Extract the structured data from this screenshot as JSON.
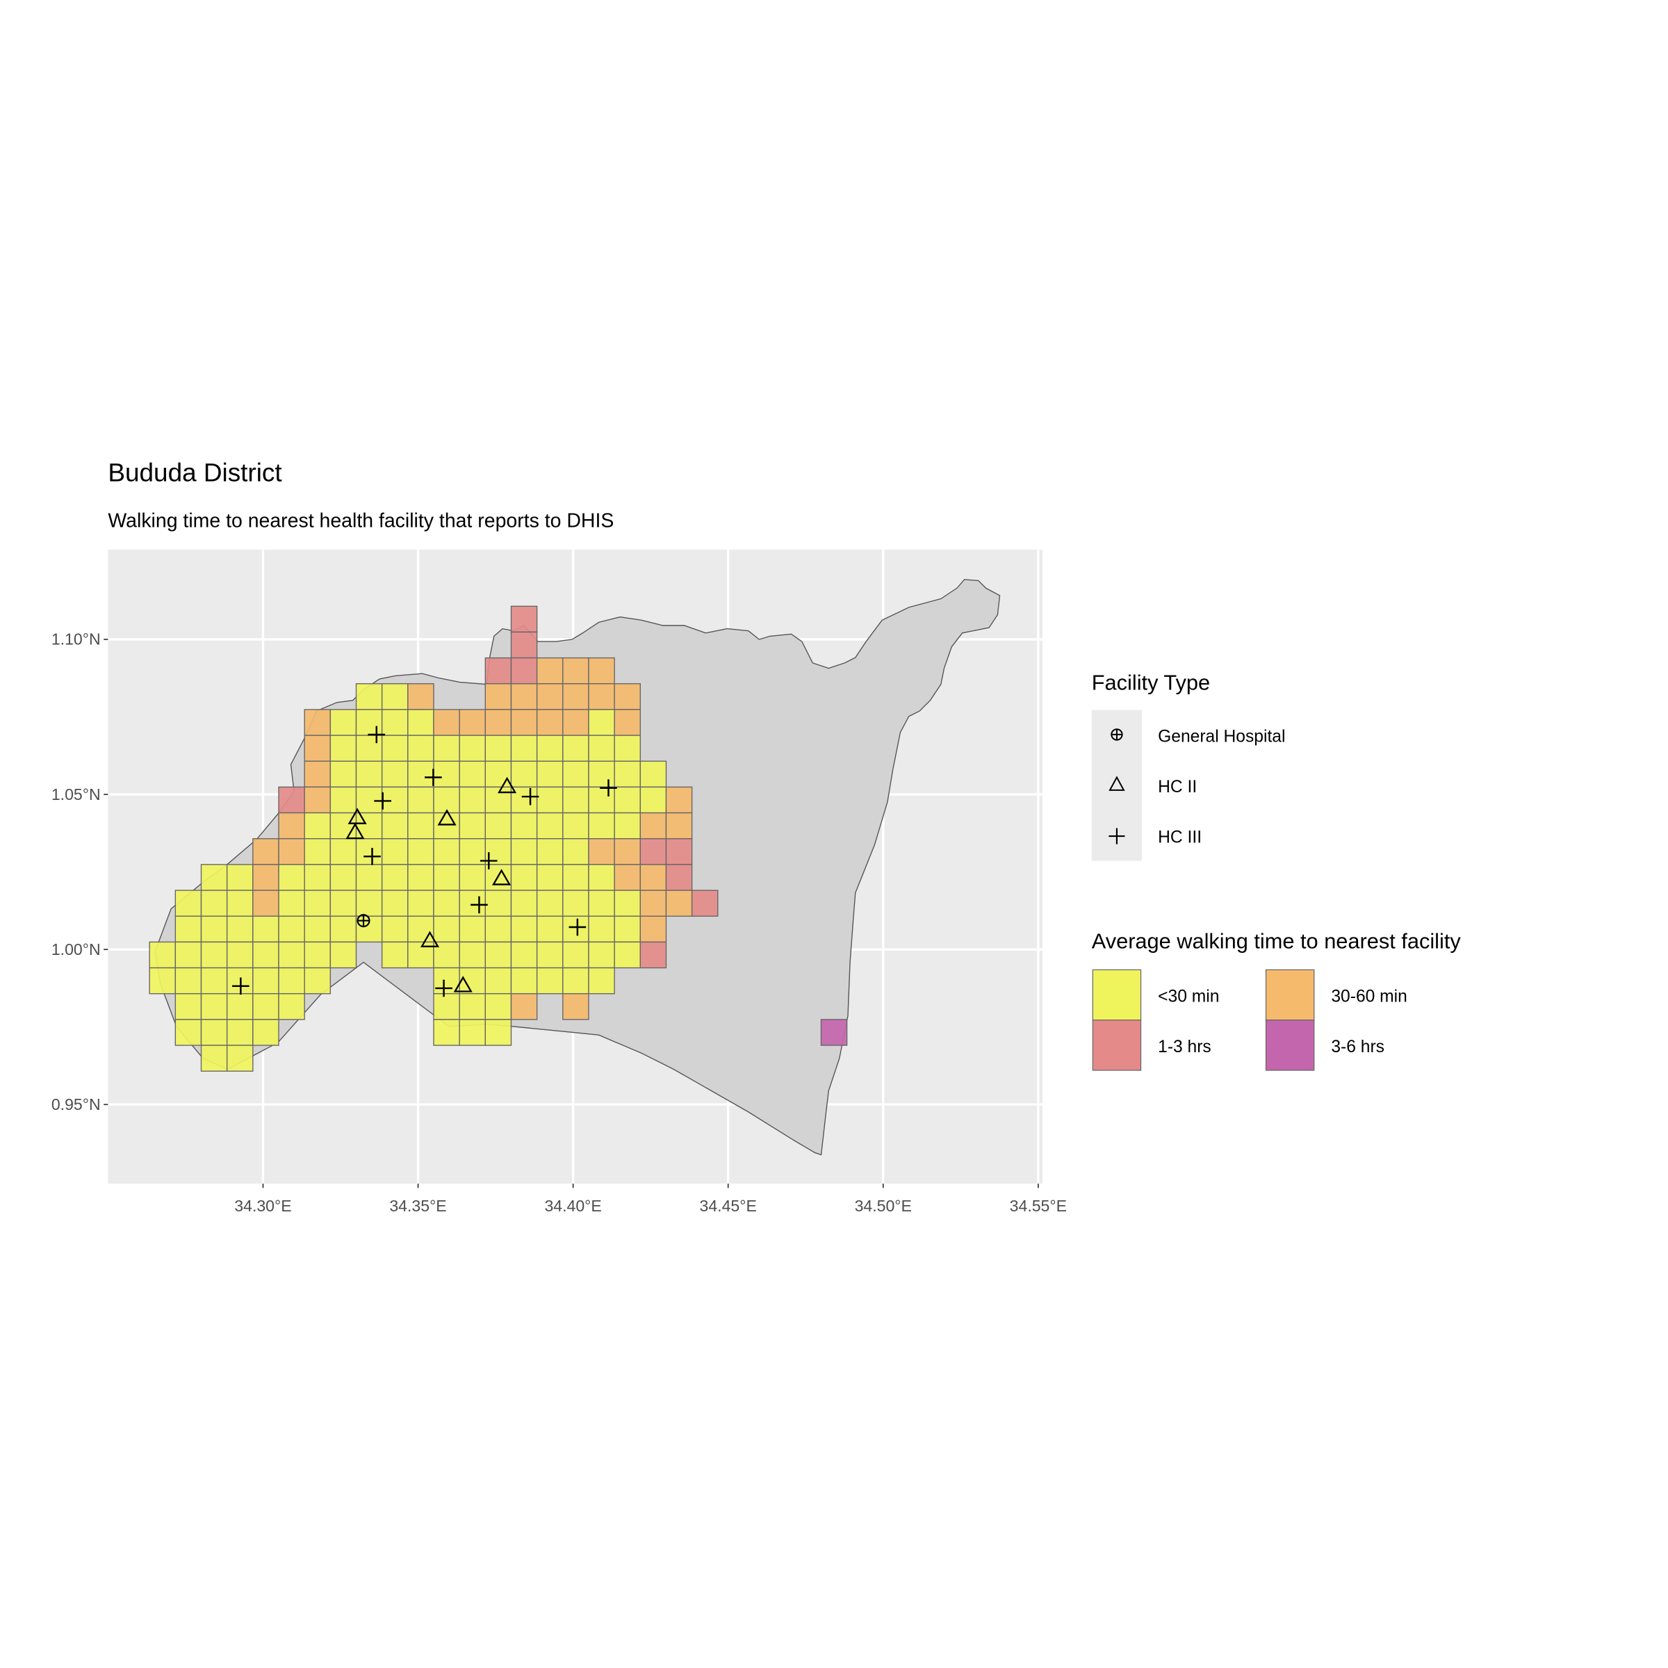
{
  "chart_data": {
    "type": "map",
    "title": "Bududa District",
    "subtitle": "Walking time to nearest health facility that reports to DHIS",
    "x_ticks": [
      {
        "value": 34.3,
        "label": "34.30°E"
      },
      {
        "value": 34.35,
        "label": "34.35°E"
      },
      {
        "value": 34.4,
        "label": "34.40°E"
      },
      {
        "value": 34.45,
        "label": "34.45°E"
      },
      {
        "value": 34.5,
        "label": "34.50°E"
      },
      {
        "value": 34.55,
        "label": "34.55°E"
      }
    ],
    "y_ticks": [
      {
        "value": 0.95,
        "label": "0.95°N"
      },
      {
        "value": 1.0,
        "label": "1.00°N"
      },
      {
        "value": 1.05,
        "label": "1.05°N"
      },
      {
        "value": 1.1,
        "label": "1.10°N"
      }
    ],
    "xlim": [
      34.25,
      34.552
    ],
    "ylim": [
      0.925,
      1.1275
    ],
    "grid": true,
    "legend_position": "right",
    "walking_time": {
      "legend_title": "Average walking time to nearest facility",
      "categories": [
        {
          "code": "Y",
          "label": "<30 min",
          "color": "#F0F45C"
        },
        {
          "code": "O",
          "label": "30-60 min",
          "color": "#F5BA6C"
        },
        {
          "code": "R",
          "label": "1-3 hrs",
          "color": "#E48B89"
        },
        {
          "code": "P",
          "label": "3-6 hrs",
          "color": "#C466AD"
        }
      ],
      "cell_size_deg": 0.00833,
      "grid_west_lon": 34.2634,
      "grid_north_lat": 1.1107,
      "rows": [
        "..............R............",
        "..............R............",
        ".............RROOO.........",
        "........YYO..OOOOOO........",
        "......OYYYYOOOOOOYO........",
        "......OYYYYYYYYYYYY........",
        "......OYYYYYYYYYYYYY.......",
        ".....ROYYYYYYYYYYYYYO......",
        ".....OYYYYYYYYYYYYYOO......",
        "....OOYYYYYYYYYYYOORR......",
        "..YYOYYYYYYYYYYYYYOOR......",
        ".YYYOYYYYYYYYYYYYYYOOR.....",
        ".YYYYYYYYYYYYYYYYYYO.......",
        "YYYYYYYY.YYYYYYYYYYR.......",
        "YYYYYYY....YYYYYYY.........",
        ".YYYYY.....YYYO.O..........",
        ".YYYY......YYY............P",
        "..YY......................."
      ]
    },
    "facility_type": {
      "legend_title": "Facility Type",
      "types": [
        {
          "key": "hospital",
          "label": "General Hospital",
          "shape": "circle-plus"
        },
        {
          "key": "hc2",
          "label": "HC II",
          "shape": "triangle"
        },
        {
          "key": "hc3",
          "label": "HC III",
          "shape": "plus"
        }
      ],
      "facilities": [
        {
          "type": "hospital",
          "lon": 34.3324,
          "lat": 1.0093
        },
        {
          "type": "hc2",
          "lon": 34.3304,
          "lat": 1.0424
        },
        {
          "type": "hc2",
          "lon": 34.3297,
          "lat": 1.0376
        },
        {
          "type": "hc2",
          "lon": 34.3593,
          "lat": 1.042
        },
        {
          "type": "hc2",
          "lon": 34.3787,
          "lat": 1.0524
        },
        {
          "type": "hc2",
          "lon": 34.3769,
          "lat": 1.0227
        },
        {
          "type": "hc2",
          "lon": 34.3538,
          "lat": 1.0027
        },
        {
          "type": "hc2",
          "lon": 34.3645,
          "lat": 0.9882
        },
        {
          "type": "hc3",
          "lon": 34.3366,
          "lat": 1.0693
        },
        {
          "type": "hc3",
          "lon": 34.3386,
          "lat": 1.0479
        },
        {
          "type": "hc3",
          "lon": 34.3549,
          "lat": 1.0555
        },
        {
          "type": "hc3",
          "lon": 34.3352,
          "lat": 1.03
        },
        {
          "type": "hc3",
          "lon": 34.3862,
          "lat": 1.0493
        },
        {
          "type": "hc3",
          "lon": 34.4114,
          "lat": 1.0521
        },
        {
          "type": "hc3",
          "lon": 34.3728,
          "lat": 1.0286
        },
        {
          "type": "hc3",
          "lon": 34.3697,
          "lat": 1.0144
        },
        {
          "type": "hc3",
          "lon": 34.4014,
          "lat": 1.0072
        },
        {
          "type": "hc3",
          "lon": 34.3583,
          "lat": 0.9875
        },
        {
          "type": "hc3",
          "lon": 34.2928,
          "lat": 0.9882
        }
      ]
    },
    "colors": {
      "panel_background": "#EBEBEB",
      "district_fill": "#D3D3D3",
      "cell_border": "#666666"
    }
  }
}
